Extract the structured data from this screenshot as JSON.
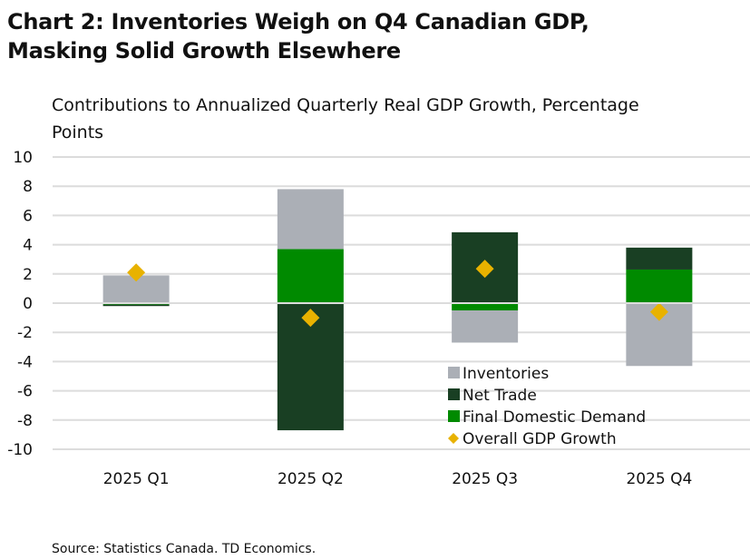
{
  "chart_data": {
    "type": "bar",
    "stacked": true,
    "title": "Chart 2: Inventories Weigh on Q4 Canadian GDP, Masking Solid Growth Elsewhere",
    "subtitle": "Contributions to Annualized Quarterly Real GDP Growth, Percentage Points",
    "xlabel": "",
    "ylabel": "",
    "ylim": [
      -10,
      10
    ],
    "yticks": [
      10,
      8,
      6,
      4,
      2,
      0,
      -2,
      -4,
      -6,
      -8,
      -10
    ],
    "grid": true,
    "legend_position": "bottom-right",
    "categories": [
      "2025 Q1",
      "2025 Q2",
      "2025 Q3",
      "2025 Q4"
    ],
    "series": [
      {
        "name": "Inventories",
        "type": "bar",
        "color": "#abafb6",
        "values": [
          1.9,
          4.1,
          -2.2,
          -4.3
        ]
      },
      {
        "name": "Net Trade",
        "type": "bar",
        "color": "#193f23",
        "values": [
          -0.1,
          -8.7,
          4.85,
          1.5
        ]
      },
      {
        "name": "Final Domestic Demand",
        "type": "bar",
        "color": "#008a00",
        "values": [
          -0.1,
          3.7,
          -0.5,
          2.3
        ]
      },
      {
        "name": "Overall GDP Growth",
        "type": "marker",
        "color": "#e8b200",
        "values": [
          2.1,
          -1.0,
          2.35,
          -0.6
        ]
      }
    ],
    "source": "Source: Statistics Canada. TD Economics."
  }
}
